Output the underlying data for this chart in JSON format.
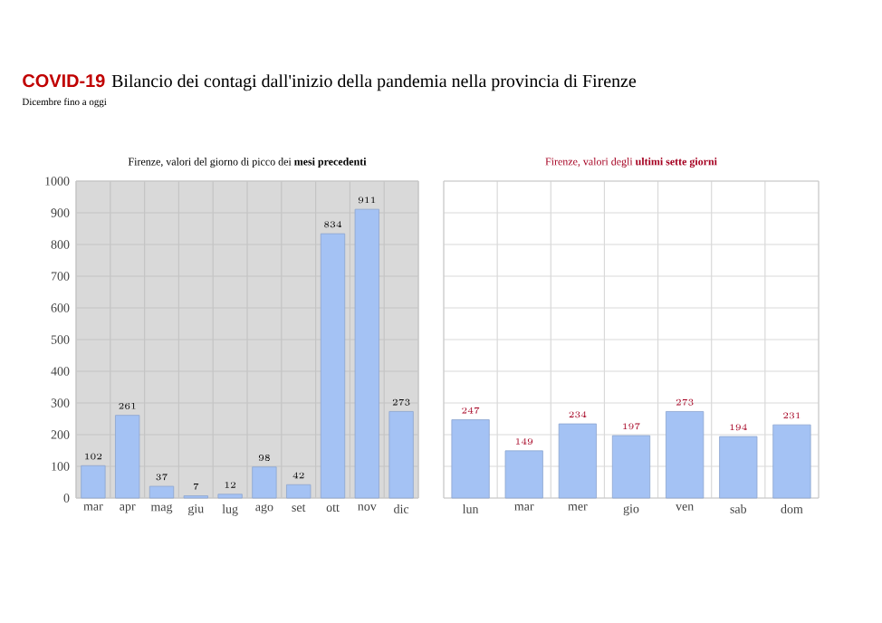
{
  "chart_data": [
    {
      "type": "bar",
      "title": "Firenze, valori del giorno di picco dei **mesi precedenti**",
      "annotations": [
        "COVID-19",
        "Bilancio dei contagi dall'inizio della pandemia nella provincia di Firenze",
        "Dicembre fino a oggi"
      ],
      "categories": [
        "mar",
        "apr",
        "mag",
        "giu",
        "lug",
        "ago",
        "set",
        "ott",
        "nov",
        "dic"
      ],
      "values": [
        102,
        261,
        37,
        7,
        12,
        98,
        42,
        834,
        911,
        273
      ],
      "color": "#a4c2f4",
      "ylim": [
        0,
        1000
      ],
      "yticks": [
        0,
        100,
        200,
        300,
        400,
        500,
        600,
        700,
        800,
        900,
        1000
      ],
      "grid": true,
      "data_labels": true
    },
    {
      "type": "bar",
      "title": "Firenze, valori degli **ultimi sette giorni**",
      "categories": [
        "lun",
        "mar",
        "mer",
        "gio",
        "ven",
        "sab",
        "dom"
      ],
      "values": [
        247,
        149,
        234,
        197,
        273,
        194,
        231
      ],
      "color": "#a4c2f4",
      "ylim": [
        0,
        1000
      ],
      "yticks": [
        0,
        100,
        200,
        300,
        400,
        500,
        600,
        700,
        800,
        900,
        1000
      ],
      "tick_labels": "x",
      "grid": true,
      "data_labels": true
    }
  ]
}
